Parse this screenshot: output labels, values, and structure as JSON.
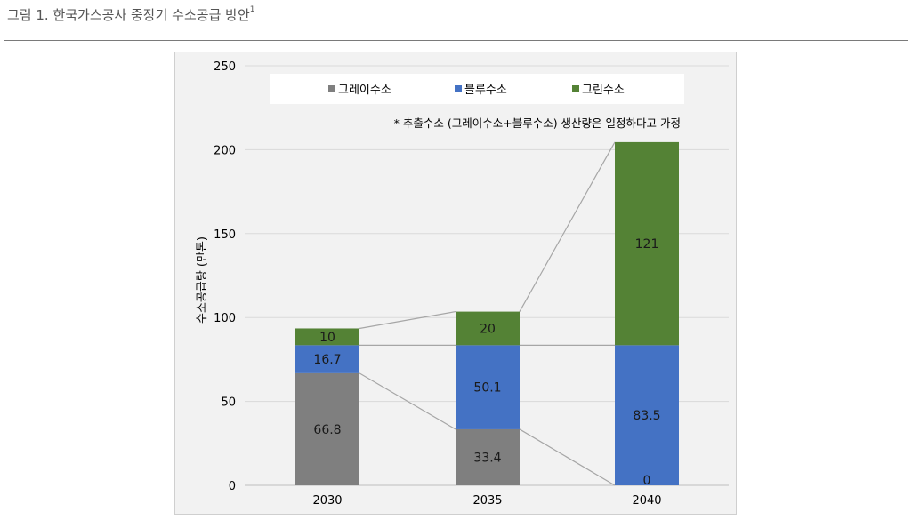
{
  "figure": {
    "title": "그림 1. 한국가스공사 중장기 수소공급 방안",
    "footnote_mark": "1"
  },
  "colors": {
    "gray": "#7f7f7f",
    "blue": "#4472c4",
    "green": "#548235",
    "connector": "#a6a6a6",
    "gridline": "#d9d9d9",
    "background": "#f2f2f2"
  },
  "chart_data": {
    "type": "bar",
    "stacked": true,
    "title": "",
    "xlabel": "",
    "ylabel": "수소공급량 (만톤)",
    "ylim": [
      0,
      250
    ],
    "yticks": [
      0,
      50,
      100,
      150,
      200,
      250
    ],
    "grid": true,
    "legend_position": "top",
    "categories": [
      "2030",
      "2035",
      "2040"
    ],
    "series": [
      {
        "name": "그레이수소",
        "color": "#7f7f7f",
        "values": [
          66.8,
          33.4,
          0
        ],
        "labels": [
          "66.8",
          "33.4",
          "0"
        ]
      },
      {
        "name": "블루수소",
        "color": "#4472c4",
        "values": [
          16.7,
          50.1,
          83.5
        ],
        "labels": [
          "16.7",
          "50.1",
          "83.5"
        ]
      },
      {
        "name": "그린수소",
        "color": "#548235",
        "values": [
          10,
          20,
          121
        ],
        "labels": [
          "10",
          "20",
          "121"
        ]
      }
    ],
    "annotation": "* 추출수소 (그레이수소+블루수소) 생산량은 일정하다고 가정"
  }
}
